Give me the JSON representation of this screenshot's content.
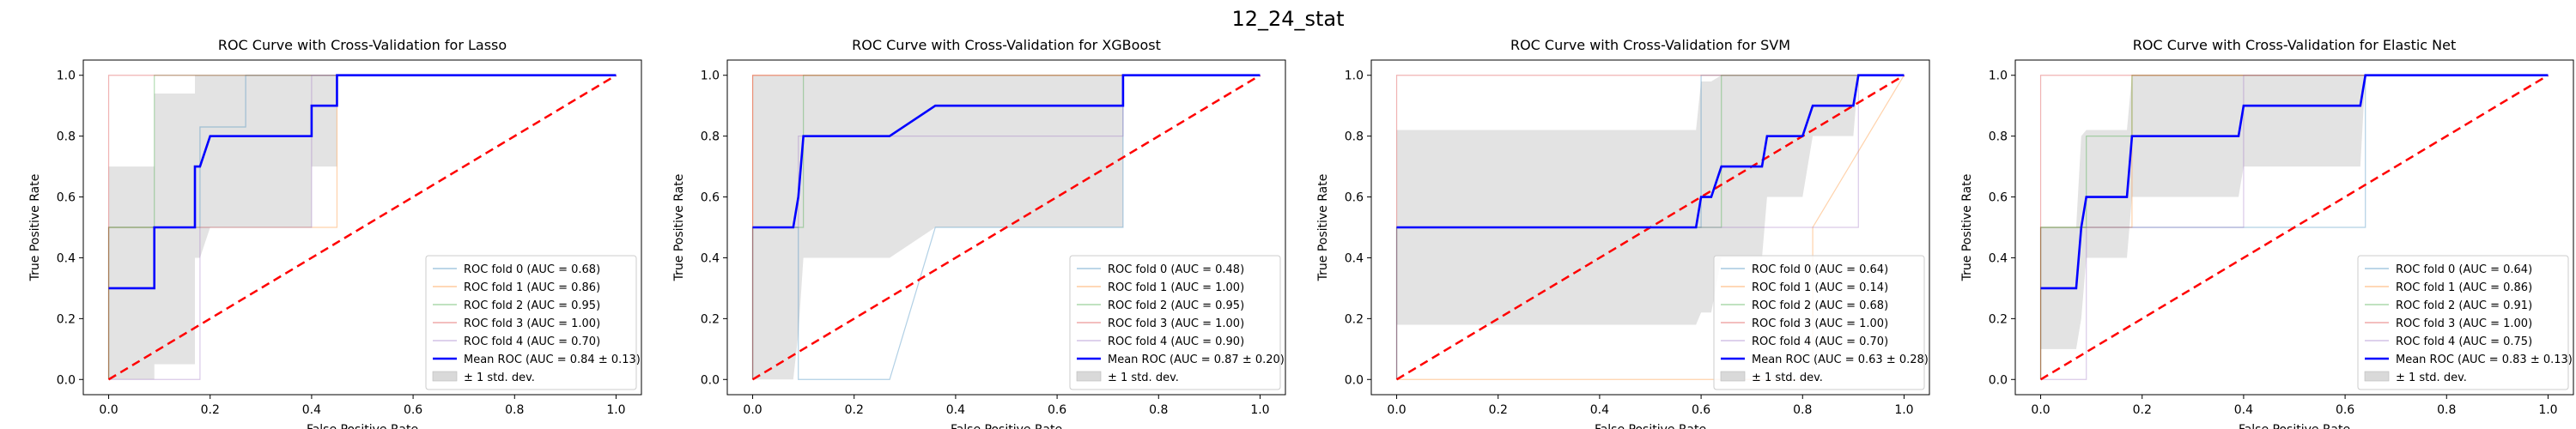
{
  "figure": {
    "suptitle": "12_24_stat"
  },
  "chart_data": [
    {
      "type": "line",
      "title": "ROC Curve with Cross-Validation for Lasso",
      "xlabel": "False Positive Rate",
      "ylabel": "True Positive Rate",
      "xlim": [
        -0.05,
        1.05
      ],
      "ylim": [
        -0.05,
        1.05
      ],
      "xticks": [
        "0.0",
        "0.2",
        "0.4",
        "0.6",
        "0.8",
        "1.0"
      ],
      "yticks": [
        "0.0",
        "0.2",
        "0.4",
        "0.6",
        "0.8",
        "1.0"
      ],
      "grid": false,
      "legend_position": "lower-right",
      "folds": [
        {
          "label": "ROC fold 0 (AUC = 0.68)",
          "x": [
            0,
            0,
            0.18,
            0.18,
            0.27,
            0.27,
            0.45,
            0.45,
            1
          ],
          "y": [
            0,
            0.5,
            0.5,
            0.83,
            0.83,
            1,
            1,
            1,
            1
          ]
        },
        {
          "label": "ROC fold 1 (AUC = 0.86)",
          "x": [
            0,
            0,
            0.09,
            0.09,
            0.45,
            0.45,
            1
          ],
          "y": [
            0,
            0.5,
            0.5,
            0.5,
            0.5,
            1,
            1
          ]
        },
        {
          "label": "ROC fold 2 (AUC = 0.95)",
          "x": [
            0,
            0,
            0.09,
            0.09,
            1
          ],
          "y": [
            0,
            0.5,
            0.5,
            1,
            1
          ]
        },
        {
          "label": "ROC fold 3 (AUC = 1.00)",
          "x": [
            0,
            0,
            1
          ],
          "y": [
            0,
            1,
            1
          ]
        },
        {
          "label": "ROC fold 4 (AUC = 0.70)",
          "x": [
            0,
            0.18,
            0.18,
            0.2,
            0.2,
            0.4,
            0.4,
            1
          ],
          "y": [
            0,
            0,
            0.5,
            0.5,
            0.5,
            0.5,
            1,
            1
          ]
        }
      ],
      "mean": {
        "label": "Mean ROC (AUC = 0.84 ± 0.13)",
        "x": [
          0,
          0.09,
          0.09,
          0.17,
          0.17,
          0.18,
          0.2,
          0.2,
          0.4,
          0.4,
          0.44,
          0.45,
          0.45,
          1
        ],
        "y": [
          0.3,
          0.3,
          0.5,
          0.5,
          0.7,
          0.7,
          0.8,
          0.8,
          0.8,
          0.9,
          0.9,
          0.9,
          1,
          1
        ],
        "upper": [
          0.7,
          0.7,
          0.94,
          0.94,
          1,
          1,
          1,
          1,
          1,
          1,
          1,
          1,
          1,
          1
        ],
        "lower": [
          0,
          0,
          0.05,
          0.05,
          0.4,
          0.4,
          0.5,
          0.5,
          0.5,
          0.7,
          0.7,
          0.7,
          1,
          1
        ]
      },
      "std_label": "± 1 std. dev.",
      "chance": {
        "x": [
          0,
          1
        ],
        "y": [
          0,
          1
        ]
      }
    },
    {
      "type": "line",
      "title": "ROC Curve with Cross-Validation for XGBoost",
      "xlabel": "False Positive Rate",
      "ylabel": "True Positive Rate",
      "xlim": [
        -0.05,
        1.05
      ],
      "ylim": [
        -0.05,
        1.05
      ],
      "xticks": [
        "0.0",
        "0.2",
        "0.4",
        "0.6",
        "0.8",
        "1.0"
      ],
      "yticks": [
        "0.0",
        "0.2",
        "0.4",
        "0.6",
        "0.8",
        "1.0"
      ],
      "grid": false,
      "legend_position": "lower-right",
      "folds": [
        {
          "label": "ROC fold 0 (AUC = 0.48)",
          "x": [
            0,
            0,
            0.09,
            0.09,
            0.27,
            0.36,
            0.73,
            0.73,
            1
          ],
          "y": [
            0,
            0.5,
            0.5,
            0,
            0,
            0.5,
            0.5,
            1,
            1
          ]
        },
        {
          "label": "ROC fold 1 (AUC = 1.00)",
          "x": [
            0,
            0,
            1
          ],
          "y": [
            0,
            1,
            1
          ]
        },
        {
          "label": "ROC fold 2 (AUC = 0.95)",
          "x": [
            0,
            0,
            0.1,
            0.1,
            1
          ],
          "y": [
            0,
            0.5,
            0.5,
            1,
            1
          ]
        },
        {
          "label": "ROC fold 3 (AUC = 1.00)",
          "x": [
            0,
            0,
            1
          ],
          "y": [
            0,
            1,
            1
          ]
        },
        {
          "label": "ROC fold 4 (AUC = 0.90)",
          "x": [
            0,
            0,
            0.09,
            0.09,
            0.73,
            0.73,
            1
          ],
          "y": [
            0,
            0.5,
            0.5,
            0.8,
            0.8,
            1,
            1
          ]
        }
      ],
      "mean": {
        "label": "Mean ROC (AUC = 0.87 ± 0.20)",
        "x": [
          0,
          0.08,
          0.09,
          0.1,
          0.27,
          0.36,
          0.73,
          0.73,
          1
        ],
        "y": [
          0.5,
          0.5,
          0.6,
          0.8,
          0.8,
          0.9,
          0.9,
          1,
          1
        ],
        "upper": [
          1,
          1,
          1,
          1,
          1,
          1,
          1,
          1,
          1
        ],
        "lower": [
          0,
          0,
          0.15,
          0.4,
          0.4,
          0.5,
          0.5,
          1,
          1
        ]
      },
      "std_label": "± 1 std. dev.",
      "chance": {
        "x": [
          0,
          1
        ],
        "y": [
          0,
          1
        ]
      }
    },
    {
      "type": "line",
      "title": "ROC Curve with Cross-Validation for SVM",
      "xlabel": "False Positive Rate",
      "ylabel": "True Positive Rate",
      "xlim": [
        -0.05,
        1.05
      ],
      "ylim": [
        -0.05,
        1.05
      ],
      "xticks": [
        "0.0",
        "0.2",
        "0.4",
        "0.6",
        "0.8",
        "1.0"
      ],
      "yticks": [
        "0.0",
        "0.2",
        "0.4",
        "0.6",
        "0.8",
        "1.0"
      ],
      "grid": false,
      "legend_position": "lower-right",
      "folds": [
        {
          "label": "ROC fold 0 (AUC = 0.64)",
          "x": [
            0,
            0,
            0.6,
            0.6,
            0.72,
            0.72,
            1
          ],
          "y": [
            0,
            0.5,
            0.5,
            1,
            1,
            1,
            1
          ]
        },
        {
          "label": "ROC fold 1 (AUC = 0.14)",
          "x": [
            0,
            0.82,
            0.82,
            1
          ],
          "y": [
            0,
            0,
            0.5,
            1
          ]
        },
        {
          "label": "ROC fold 2 (AUC = 0.68)",
          "x": [
            0,
            0,
            0.64,
            0.64,
            0.91,
            0.91,
            1
          ],
          "y": [
            0,
            0.5,
            0.5,
            1,
            1,
            1,
            1
          ]
        },
        {
          "label": "ROC fold 3 (AUC = 1.00)",
          "x": [
            0,
            0,
            1
          ],
          "y": [
            0,
            1,
            1
          ]
        },
        {
          "label": "ROC fold 4 (AUC = 0.70)",
          "x": [
            0,
            0,
            0.73,
            0.73,
            0.91,
            0.91,
            1
          ],
          "y": [
            0,
            0.5,
            0.5,
            0.5,
            0.5,
            1,
            1
          ]
        }
      ],
      "mean": {
        "label": "Mean ROC (AUC = 0.63 ± 0.28)",
        "x": [
          0,
          0.59,
          0.6,
          0.62,
          0.64,
          0.72,
          0.73,
          0.8,
          0.82,
          0.9,
          0.91,
          1
        ],
        "y": [
          0.5,
          0.5,
          0.6,
          0.6,
          0.7,
          0.7,
          0.8,
          0.8,
          0.9,
          0.9,
          1,
          1
        ],
        "upper": [
          0.82,
          0.82,
          0.98,
          0.98,
          1,
          1,
          1,
          1,
          1,
          1,
          1,
          1
        ],
        "lower": [
          0.18,
          0.18,
          0.22,
          0.22,
          0.4,
          0.4,
          0.6,
          0.6,
          0.8,
          0.8,
          1,
          1
        ]
      },
      "std_label": "± 1 std. dev.",
      "chance": {
        "x": [
          0,
          1
        ],
        "y": [
          0,
          1
        ]
      }
    },
    {
      "type": "line",
      "title": "ROC Curve with Cross-Validation for Elastic Net",
      "xlabel": "False Positive Rate",
      "ylabel": "True Positive Rate",
      "xlim": [
        -0.05,
        1.05
      ],
      "ylim": [
        -0.05,
        1.05
      ],
      "xticks": [
        "0.0",
        "0.2",
        "0.4",
        "0.6",
        "0.8",
        "1.0"
      ],
      "yticks": [
        "0.0",
        "0.2",
        "0.4",
        "0.6",
        "0.8",
        "1.0"
      ],
      "grid": false,
      "legend_position": "lower-right",
      "folds": [
        {
          "label": "ROC fold 0 (AUC = 0.64)",
          "x": [
            0,
            0,
            0.64,
            0.64,
            1
          ],
          "y": [
            0,
            0.5,
            0.5,
            1,
            1
          ]
        },
        {
          "label": "ROC fold 1 (AUC = 0.86)",
          "x": [
            0,
            0,
            0.1,
            0.1,
            0.18,
            0.18,
            1
          ],
          "y": [
            0,
            0.5,
            0.5,
            0.5,
            0.5,
            1,
            1
          ]
        },
        {
          "label": "ROC fold 2 (AUC = 0.91)",
          "x": [
            0,
            0,
            0.09,
            0.09,
            0.18,
            0.18,
            1
          ],
          "y": [
            0,
            0.5,
            0.5,
            0.8,
            0.8,
            1,
            1
          ]
        },
        {
          "label": "ROC fold 3 (AUC = 1.00)",
          "x": [
            0,
            0,
            1
          ],
          "y": [
            0,
            1,
            1
          ]
        },
        {
          "label": "ROC fold 4 (AUC = 0.75)",
          "x": [
            0,
            0.09,
            0.09,
            0.4,
            0.4,
            1
          ],
          "y": [
            0,
            0,
            0.5,
            0.5,
            1,
            1
          ]
        }
      ],
      "mean": {
        "label": "Mean ROC (AUC = 0.83 ± 0.13)",
        "x": [
          0,
          0.07,
          0.08,
          0.09,
          0.1,
          0.17,
          0.18,
          0.39,
          0.4,
          0.63,
          0.64,
          1
        ],
        "y": [
          0.3,
          0.3,
          0.5,
          0.6,
          0.6,
          0.6,
          0.8,
          0.8,
          0.9,
          0.9,
          1,
          1
        ],
        "upper": [
          0.5,
          0.5,
          0.8,
          0.82,
          0.82,
          0.82,
          1,
          1,
          1,
          1,
          1,
          1
        ],
        "lower": [
          0.1,
          0.1,
          0.2,
          0.4,
          0.4,
          0.4,
          0.6,
          0.6,
          0.7,
          0.7,
          1,
          1
        ]
      },
      "std_label": "± 1 std. dev.",
      "chance": {
        "x": [
          0,
          1
        ],
        "y": [
          0,
          1
        ]
      }
    }
  ],
  "colors": {
    "folds": [
      "#1f77b4",
      "#ff7f0e",
      "#2ca02c",
      "#d62728",
      "#9467bd"
    ],
    "mean": "#0000ff",
    "chance": "#ff0000",
    "band": "#d9d9d9",
    "axis": "#000000",
    "legend_border": "#cccccc"
  }
}
